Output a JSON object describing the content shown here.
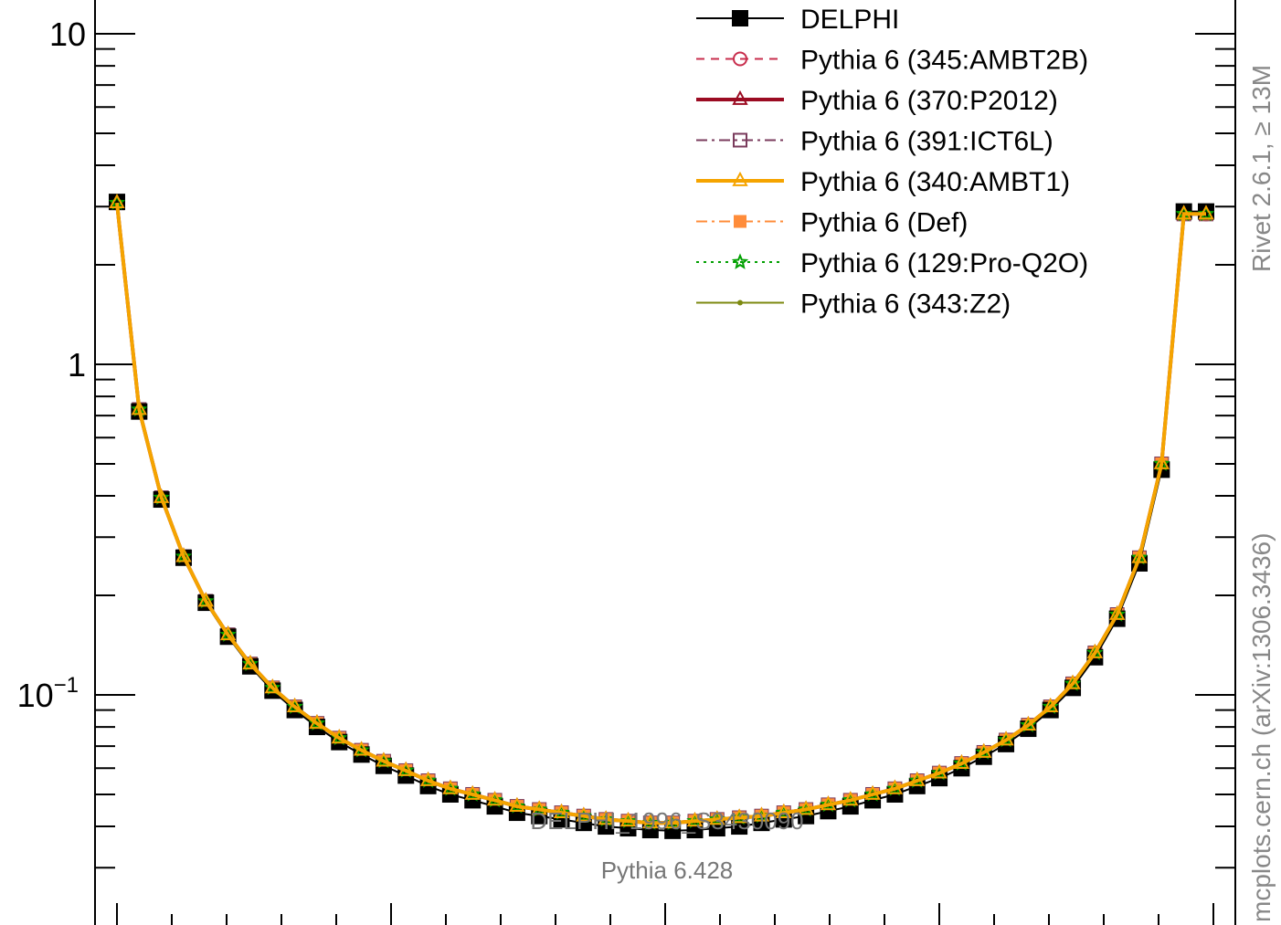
{
  "chart_data": {
    "type": "line",
    "y_scale": "log",
    "ylim": [
      0.027,
      14
    ],
    "y_ticks": [
      {
        "label_base": "10",
        "label_exp": "",
        "value": 10
      },
      {
        "label_base": "1",
        "label_exp": "",
        "value": 1
      },
      {
        "label_base": "10",
        "label_exp": "−1",
        "value": 0.1
      }
    ],
    "legend_placement": "top-right",
    "x": [
      0.01,
      0.03,
      0.05,
      0.07,
      0.09,
      0.11,
      0.13,
      0.15,
      0.17,
      0.19,
      0.21,
      0.23,
      0.25,
      0.27,
      0.29,
      0.31,
      0.33,
      0.35,
      0.37,
      0.39,
      0.41,
      0.43,
      0.45,
      0.47,
      0.49,
      0.51,
      0.53,
      0.55,
      0.57,
      0.59,
      0.61,
      0.63,
      0.65,
      0.67,
      0.69,
      0.71,
      0.73,
      0.75,
      0.77,
      0.79,
      0.81,
      0.83,
      0.85,
      0.87,
      0.89,
      0.91,
      0.93,
      0.95,
      0.97,
      0.99
    ],
    "xlim": [
      0,
      1
    ],
    "series": [
      {
        "name": "DELPHI",
        "color": "#000000",
        "marker": "filled-square",
        "line": "solid",
        "values": [
          3.1,
          0.72,
          0.39,
          0.26,
          0.19,
          0.15,
          0.122,
          0.103,
          0.09,
          0.08,
          0.072,
          0.066,
          0.061,
          0.057,
          0.053,
          0.05,
          0.048,
          0.046,
          0.044,
          0.043,
          0.042,
          0.041,
          0.04,
          0.0395,
          0.039,
          0.0388,
          0.039,
          0.0395,
          0.04,
          0.041,
          0.042,
          0.043,
          0.0445,
          0.046,
          0.048,
          0.05,
          0.053,
          0.056,
          0.06,
          0.065,
          0.071,
          0.079,
          0.09,
          0.105,
          0.13,
          0.17,
          0.25,
          0.48,
          2.9,
          2.9
        ]
      },
      {
        "name": "Pythia 6 (345:AMBT2B)",
        "color": "#c82d4c",
        "marker": "open-circle",
        "line": "dashed",
        "values": "model"
      },
      {
        "name": "Pythia 6 (370:P2012)",
        "color": "#9b0b22",
        "marker": "open-triangle",
        "line": "solid-thick",
        "values": "model"
      },
      {
        "name": "Pythia 6 (391:ICT6L)",
        "color": "#7a3b5c",
        "marker": "open-square",
        "line": "dashdot",
        "values": "model"
      },
      {
        "name": "Pythia 6 (340:AMBT1)",
        "color": "#f5a400",
        "marker": "open-triangle",
        "line": "solid-thick",
        "values": "model"
      },
      {
        "name": "Pythia 6 (Def)",
        "color": "#ff8c3a",
        "marker": "filled-square",
        "line": "dashdot",
        "values": "model"
      },
      {
        "name": "Pythia 6 (129:Pro-Q2O)",
        "color": "#00a000",
        "marker": "open-star",
        "line": "dotted",
        "values": "model"
      },
      {
        "name": "Pythia 6 (343:Z2)",
        "color": "#7d8a10",
        "marker": "small-dot",
        "line": "solid",
        "values": "model"
      }
    ],
    "model_values": [
      3.08,
      0.73,
      0.395,
      0.262,
      0.192,
      0.152,
      0.124,
      0.105,
      0.092,
      0.082,
      0.074,
      0.068,
      0.063,
      0.059,
      0.055,
      0.052,
      0.05,
      0.048,
      0.046,
      0.045,
      0.044,
      0.043,
      0.042,
      0.0415,
      0.041,
      0.041,
      0.0415,
      0.042,
      0.0425,
      0.043,
      0.044,
      0.045,
      0.0465,
      0.048,
      0.05,
      0.052,
      0.055,
      0.058,
      0.062,
      0.067,
      0.073,
      0.081,
      0.092,
      0.108,
      0.134,
      0.175,
      0.26,
      0.5,
      2.85,
      2.85
    ]
  },
  "annotations": {
    "analysis_id": "DELPHI_1996_S3430090",
    "generator": "Pythia 6.428",
    "side_top": "Rivet 2.6.1, ≥ 13M",
    "side_bottom": "mcplots.cern.ch (arXiv:1306.3436)"
  }
}
